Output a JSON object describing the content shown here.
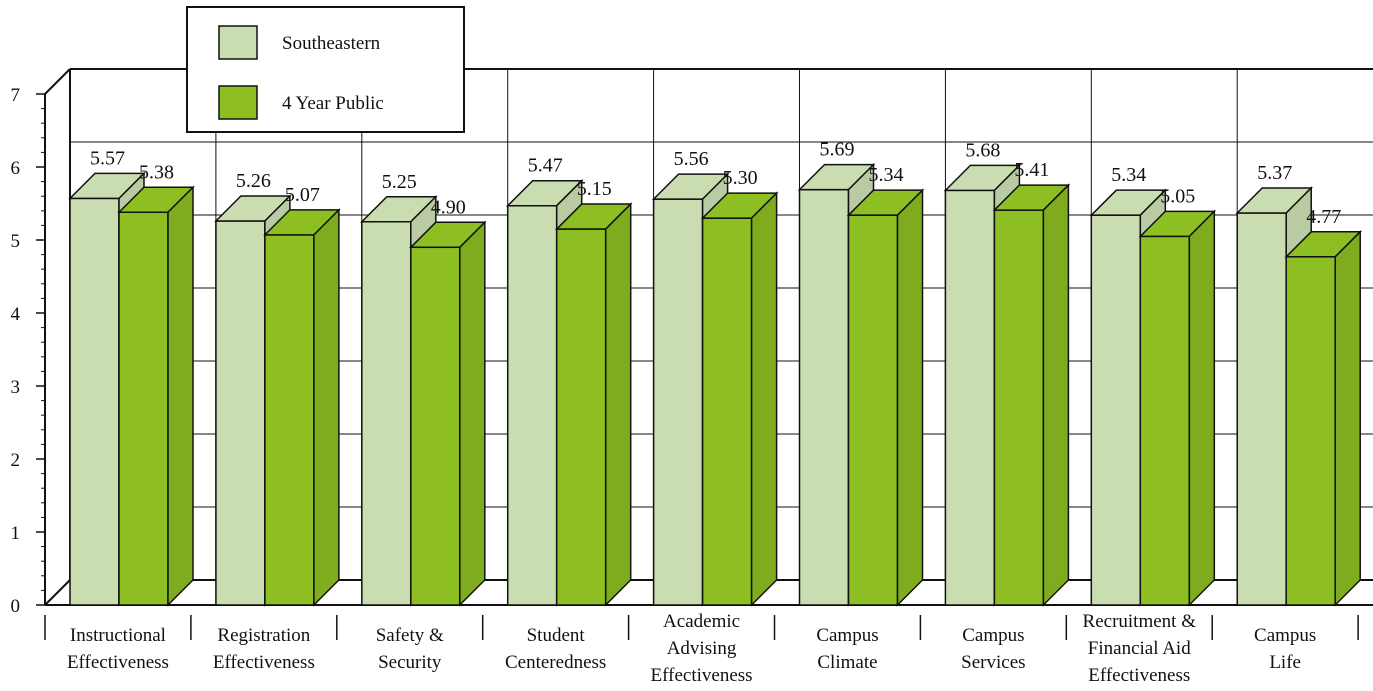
{
  "chart_data": {
    "type": "bar",
    "categories": [
      [
        "Instructional",
        "Effectiveness"
      ],
      [
        "Registration",
        "Effectiveness"
      ],
      [
        "Safety &",
        "Security"
      ],
      [
        "Student",
        "Centeredness"
      ],
      [
        "Academic",
        "Advising",
        "Effectiveness"
      ],
      [
        "Campus",
        "Climate"
      ],
      [
        "Campus",
        "Services"
      ],
      [
        "Recruitment &",
        "Financial Aid",
        "Effectiveness"
      ],
      [
        "Campus",
        "Life"
      ]
    ],
    "series": [
      {
        "name": "Southeastern",
        "values": [
          5.57,
          5.26,
          5.25,
          5.47,
          5.56,
          5.69,
          5.68,
          5.34,
          5.37
        ],
        "labels": [
          "5.57",
          "5.26",
          "5.25",
          "5.47",
          "5.56",
          "5.69",
          "5.68",
          "5.34",
          "5.37"
        ],
        "color": "#c9ddb0"
      },
      {
        "name": "4 Year Public",
        "values": [
          5.38,
          5.07,
          4.9,
          5.15,
          5.3,
          5.34,
          5.41,
          5.05,
          4.77
        ],
        "labels": [
          "5.38",
          "5.07",
          "4.90",
          "5.15",
          "5.30",
          "5.34",
          "5.41",
          "5.05",
          "4.77"
        ],
        "color": "#8dbf22"
      }
    ],
    "y_ticks": [
      "0",
      "1",
      "2",
      "3",
      "4",
      "5",
      "6",
      "7"
    ],
    "ylim": [
      0,
      7
    ],
    "grid": true,
    "legend_position": "top-left",
    "style": "3d-bar"
  }
}
